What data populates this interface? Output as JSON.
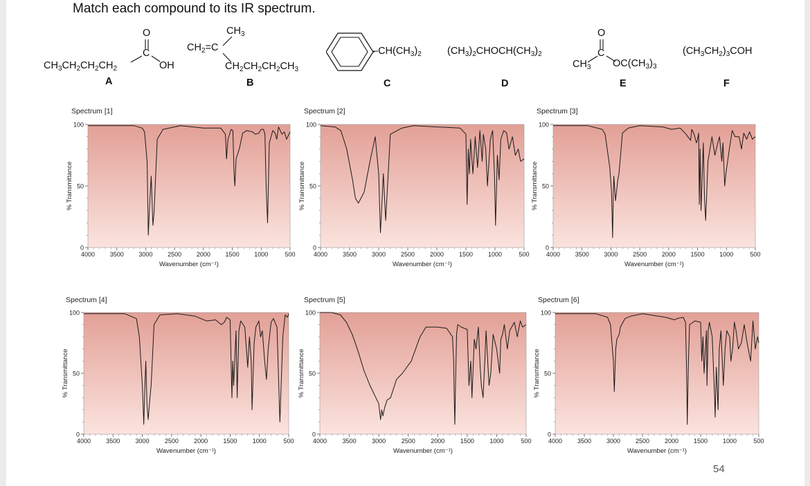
{
  "slide": {
    "heading": "Match each compound to its IR spectrum.",
    "page_number": "54"
  },
  "compounds": [
    {
      "id": "A",
      "formula_left": "CH3CH2CH2CH2",
      "carbonyl_o": "O",
      "carbonyl_c": "C",
      "group": "OH"
    },
    {
      "id": "B",
      "top": "CH3",
      "left": "CH2=C",
      "bottom": "CH2CH2CH2CH3"
    },
    {
      "id": "C",
      "substituent": "CH(CH3)2"
    },
    {
      "id": "D",
      "formula": "(CH3)2CHOCH(CH3)2"
    },
    {
      "id": "E",
      "left": "CH3",
      "carbonyl_o": "O",
      "carbonyl_c": "C",
      "right": "OC(CH3)3"
    },
    {
      "id": "F",
      "formula": "(CH3CH2)3COH"
    }
  ],
  "spectra_common": {
    "ylabel": "% Transmittance",
    "xlabel": "Wavenumber (cm⁻¹)",
    "y_ticks": [
      "0",
      "50",
      "100"
    ],
    "x_ticks": [
      "4000",
      "3500",
      "3000",
      "2500",
      "2000",
      "1500",
      "1000",
      "500"
    ],
    "x_range": [
      4000,
      500
    ],
    "y_range": [
      0,
      100
    ],
    "gradient_top": "#e2a096",
    "gradient_bottom": "#fbe3de"
  },
  "chart_data": [
    {
      "type": "line",
      "title": "Spectrum [1]",
      "x_axis": "wavenumber (reversed)",
      "series": [
        {
          "x": [
            4000,
            3600,
            3200,
            3060,
            3020,
            2975,
            2955,
            2935,
            2905,
            2875,
            2855,
            2800,
            2700,
            2400,
            2000,
            1700,
            1620,
            1600,
            1575,
            1520,
            1490,
            1470,
            1455,
            1435,
            1380,
            1320,
            1250,
            1150,
            1100,
            1040,
            1000,
            960,
            935,
            915,
            890,
            860,
            800,
            760,
            730,
            700,
            640,
            600,
            560,
            520,
            500
          ],
          "y": [
            99,
            99,
            99,
            97,
            94,
            70,
            10,
            32,
            58,
            18,
            28,
            88,
            96,
            99,
            97,
            97,
            92,
            72,
            88,
            96,
            95,
            60,
            50,
            72,
            80,
            93,
            95,
            94,
            92,
            93,
            96,
            96,
            92,
            50,
            20,
            85,
            95,
            93,
            88,
            98,
            92,
            94,
            88,
            92,
            94
          ]
        }
      ]
    },
    {
      "type": "line",
      "title": "Spectrum [2]",
      "x_axis": "wavenumber (reversed)",
      "series": [
        {
          "x": [
            4000,
            3750,
            3650,
            3550,
            3450,
            3400,
            3350,
            3250,
            3150,
            3060,
            3000,
            2970,
            2950,
            2920,
            2880,
            2860,
            2800,
            2600,
            2400,
            2000,
            1600,
            1500,
            1480,
            1470,
            1460,
            1440,
            1420,
            1380,
            1360,
            1340,
            1300,
            1260,
            1220,
            1200,
            1160,
            1130,
            1080,
            1040,
            1010,
            990,
            960,
            930,
            900,
            850,
            800,
            760,
            700,
            650,
            600,
            560,
            500
          ],
          "y": [
            99,
            98,
            95,
            80,
            55,
            40,
            36,
            45,
            70,
            90,
            60,
            12,
            30,
            60,
            22,
            40,
            92,
            97,
            99,
            98,
            97,
            92,
            35,
            55,
            80,
            60,
            88,
            60,
            75,
            90,
            65,
            95,
            70,
            92,
            80,
            50,
            88,
            95,
            60,
            18,
            75,
            55,
            88,
            95,
            93,
            80,
            90,
            75,
            80,
            70,
            72
          ]
        }
      ]
    },
    {
      "type": "line",
      "title": "Spectrum [3]",
      "x_axis": "wavenumber (reversed)",
      "series": [
        {
          "x": [
            4000,
            3700,
            3400,
            3150,
            3100,
            3020,
            2990,
            2970,
            2960,
            2950,
            2920,
            2880,
            2860,
            2800,
            2700,
            2500,
            2100,
            1950,
            1800,
            1700,
            1620,
            1600,
            1560,
            1520,
            1500,
            1480,
            1470,
            1455,
            1440,
            1400,
            1380,
            1360,
            1320,
            1250,
            1200,
            1150,
            1120,
            1080,
            1060,
            1030,
            1010,
            980,
            950,
            900,
            850,
            780,
            740,
            700,
            650,
            600,
            550,
            500
          ],
          "y": [
            99,
            99,
            99,
            96,
            92,
            65,
            45,
            8,
            40,
            58,
            38,
            55,
            60,
            93,
            97,
            99,
            98,
            96,
            97,
            92,
            87,
            96,
            92,
            85,
            88,
            93,
            35,
            80,
            30,
            85,
            40,
            22,
            70,
            90,
            75,
            85,
            90,
            70,
            85,
            50,
            60,
            70,
            80,
            95,
            90,
            90,
            80,
            93,
            88,
            94,
            88,
            90
          ]
        }
      ]
    },
    {
      "type": "line",
      "title": "Spectrum [4]",
      "x_axis": "wavenumber (reversed)",
      "series": [
        {
          "x": [
            4000,
            3600,
            3300,
            3100,
            3050,
            3000,
            2975,
            2960,
            2940,
            2920,
            2900,
            2870,
            2850,
            2800,
            2700,
            2400,
            2100,
            1900,
            1750,
            1650,
            1600,
            1560,
            1500,
            1470,
            1455,
            1440,
            1400,
            1380,
            1370,
            1350,
            1320,
            1250,
            1200,
            1170,
            1140,
            1125,
            1090,
            1060,
            1010,
            980,
            950,
            910,
            880,
            850,
            800,
            760,
            700,
            650,
            600,
            560,
            520,
            500
          ],
          "y": [
            99,
            99,
            99,
            95,
            80,
            40,
            8,
            35,
            60,
            25,
            12,
            30,
            40,
            90,
            98,
            99,
            97,
            93,
            94,
            90,
            92,
            96,
            94,
            30,
            60,
            40,
            85,
            30,
            50,
            85,
            93,
            88,
            55,
            80,
            60,
            20,
            75,
            88,
            93,
            80,
            85,
            60,
            45,
            70,
            92,
            95,
            88,
            10,
            80,
            98,
            96,
            99
          ]
        }
      ]
    },
    {
      "type": "line",
      "title": "Spectrum [5]",
      "x_axis": "wavenumber (reversed)",
      "series": [
        {
          "x": [
            4000,
            3800,
            3650,
            3550,
            3450,
            3350,
            3250,
            3150,
            3050,
            3000,
            2970,
            2950,
            2930,
            2900,
            2860,
            2800,
            2700,
            2600,
            2450,
            2300,
            2200,
            2000,
            1850,
            1750,
            1730,
            1720,
            1710,
            1700,
            1680,
            1660,
            1600,
            1500,
            1470,
            1440,
            1420,
            1380,
            1350,
            1310,
            1280,
            1260,
            1230,
            1200,
            1180,
            1130,
            1100,
            1060,
            1000,
            950,
            930,
            900,
            870,
            820,
            780,
            700,
            650,
            600,
            560,
            500
          ],
          "y": [
            100,
            100,
            98,
            92,
            82,
            68,
            52,
            40,
            30,
            25,
            12,
            20,
            15,
            22,
            28,
            30,
            45,
            50,
            60,
            80,
            88,
            88,
            87,
            80,
            60,
            30,
            8,
            35,
            82,
            90,
            88,
            86,
            40,
            60,
            30,
            78,
            70,
            88,
            55,
            40,
            30,
            62,
            85,
            40,
            50,
            82,
            70,
            50,
            78,
            82,
            90,
            70,
            85,
            92,
            80,
            93,
            88,
            90
          ]
        }
      ]
    },
    {
      "type": "line",
      "title": "Spectrum [6]",
      "x_axis": "wavenumber (reversed)",
      "series": [
        {
          "x": [
            4000,
            3600,
            3300,
            3100,
            3050,
            3000,
            2985,
            2960,
            2940,
            2900,
            2880,
            2800,
            2700,
            2500,
            2100,
            1950,
            1900,
            1800,
            1760,
            1740,
            1730,
            1710,
            1690,
            1600,
            1500,
            1480,
            1460,
            1440,
            1400,
            1390,
            1370,
            1350,
            1300,
            1260,
            1250,
            1230,
            1200,
            1180,
            1150,
            1110,
            1080,
            1050,
            1000,
            980,
            950,
            920,
            890,
            850,
            800,
            750,
            700,
            640,
            600,
            560,
            520,
            500
          ],
          "y": [
            99,
            99,
            99,
            96,
            90,
            60,
            35,
            70,
            78,
            82,
            88,
            95,
            97,
            99,
            96,
            94,
            95,
            96,
            92,
            50,
            8,
            60,
            90,
            93,
            92,
            60,
            80,
            50,
            85,
            40,
            85,
            92,
            80,
            30,
            14,
            55,
            20,
            70,
            85,
            40,
            70,
            85,
            80,
            60,
            70,
            92,
            85,
            70,
            75,
            90,
            75,
            60,
            93,
            70,
            80,
            75
          ]
        }
      ]
    }
  ]
}
